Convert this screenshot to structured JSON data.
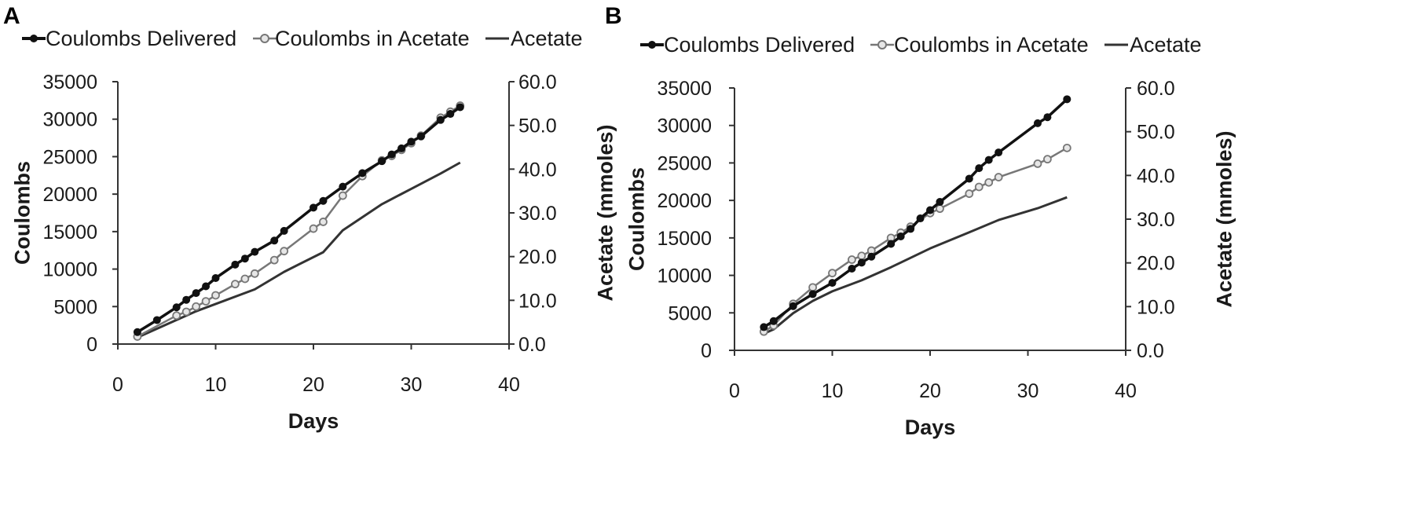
{
  "colors": {
    "delivered": "#111111",
    "in_acetate": "#777777",
    "acetate": "#333333",
    "axis": "#333333"
  },
  "legend_icons": {
    "delivered": "filled-circle-marker",
    "in_acetate": "hollow-circle-marker",
    "acetate": "line"
  },
  "chart_data": [
    {
      "panel": "A",
      "type": "line",
      "xlabel": "Days",
      "ylabel": "Coulombs",
      "y2label": "Acetate (mmoles)",
      "xlim": [
        0,
        40
      ],
      "ylim": [
        0,
        35000
      ],
      "y2lim": [
        0,
        60
      ],
      "x_ticks": [
        "0",
        "10",
        "20",
        "30",
        "40"
      ],
      "y_ticks": [
        "0",
        "5000",
        "10000",
        "15000",
        "20000",
        "25000",
        "30000",
        "35000"
      ],
      "y2_ticks": [
        "0.0",
        "10.0",
        "20.0",
        "30.0",
        "40.0",
        "50.0",
        "60.0"
      ],
      "legend_position": "top",
      "grid": false,
      "series": [
        {
          "name": "Coulombs Delivered",
          "axis": "left",
          "marker": "filled",
          "x": [
            2,
            4,
            6,
            7,
            8,
            9,
            10,
            12,
            13,
            14,
            16,
            17,
            20,
            21,
            23,
            25,
            27,
            28,
            29,
            30,
            31,
            33,
            34,
            35
          ],
          "y": [
            1600,
            3200,
            4900,
            5900,
            6800,
            7700,
            8800,
            10600,
            11400,
            12300,
            13800,
            15100,
            18200,
            19100,
            21000,
            22800,
            24400,
            25300,
            26100,
            27000,
            27700,
            29900,
            30700,
            31600
          ]
        },
        {
          "name": "Coulombs in Acetate",
          "axis": "left",
          "marker": "hollow",
          "x": [
            2,
            6,
            7,
            8,
            9,
            10,
            12,
            13,
            14,
            16,
            17,
            20,
            21,
            23,
            25,
            27,
            28,
            29,
            30,
            31,
            33,
            34,
            35
          ],
          "y": [
            1000,
            3800,
            4300,
            5000,
            5700,
            6500,
            8000,
            8700,
            9400,
            11200,
            12400,
            15400,
            16300,
            19800,
            22400,
            24500,
            25100,
            25900,
            26800,
            27800,
            30200,
            31000,
            31800
          ]
        },
        {
          "name": "Acetate",
          "axis": "right",
          "marker": "none",
          "x": [
            2,
            5,
            8,
            11,
            14,
            17,
            21,
            23,
            27,
            30,
            33,
            35
          ],
          "y": [
            1.5,
            4.5,
            7.5,
            10.0,
            12.5,
            16.5,
            21.0,
            26.0,
            32.0,
            35.5,
            39.0,
            41.5
          ]
        }
      ]
    },
    {
      "panel": "B",
      "type": "line",
      "xlabel": "Days",
      "ylabel": "Coulombs",
      "y2label": "Acetate (mmoles)",
      "xlim": [
        0,
        40
      ],
      "ylim": [
        0,
        35000
      ],
      "y2lim": [
        0,
        60
      ],
      "x_ticks": [
        "0",
        "10",
        "20",
        "30",
        "40"
      ],
      "y_ticks": [
        "0",
        "5000",
        "10000",
        "15000",
        "20000",
        "25000",
        "30000",
        "35000"
      ],
      "y2_ticks": [
        "0.0",
        "10.0",
        "20.0",
        "30.0",
        "40.0",
        "50.0",
        "60.0"
      ],
      "legend_position": "top",
      "grid": false,
      "series": [
        {
          "name": "Coulombs Delivered",
          "axis": "left",
          "marker": "filled",
          "x": [
            3,
            4,
            6,
            8,
            10,
            12,
            13,
            14,
            16,
            17,
            18,
            19,
            20,
            21,
            24,
            25,
            26,
            27,
            31,
            32,
            34
          ],
          "y": [
            3100,
            3900,
            5900,
            7500,
            9000,
            10900,
            11700,
            12500,
            14200,
            15200,
            16200,
            17600,
            18700,
            19800,
            22900,
            24300,
            25400,
            26400,
            30300,
            31100,
            33500
          ]
        },
        {
          "name": "Coulombs in Acetate",
          "axis": "left",
          "marker": "hollow",
          "x": [
            3,
            4,
            6,
            8,
            10,
            12,
            13,
            14,
            16,
            17,
            18,
            20,
            21,
            24,
            25,
            26,
            27,
            31,
            32,
            34
          ],
          "y": [
            2500,
            3300,
            6200,
            8400,
            10300,
            12100,
            12600,
            13300,
            15000,
            15700,
            16500,
            18300,
            18900,
            20900,
            21800,
            22400,
            23100,
            24900,
            25500,
            27000
          ]
        },
        {
          "name": "Acetate",
          "axis": "right",
          "marker": "none",
          "x": [
            3,
            4,
            6,
            8,
            10,
            13,
            16,
            20,
            24,
            27,
            31,
            34
          ],
          "y": [
            3.8,
            4.8,
            8.5,
            11.3,
            13.5,
            16.0,
            19.0,
            23.3,
            27.0,
            29.8,
            32.5,
            35.0
          ]
        }
      ]
    }
  ]
}
